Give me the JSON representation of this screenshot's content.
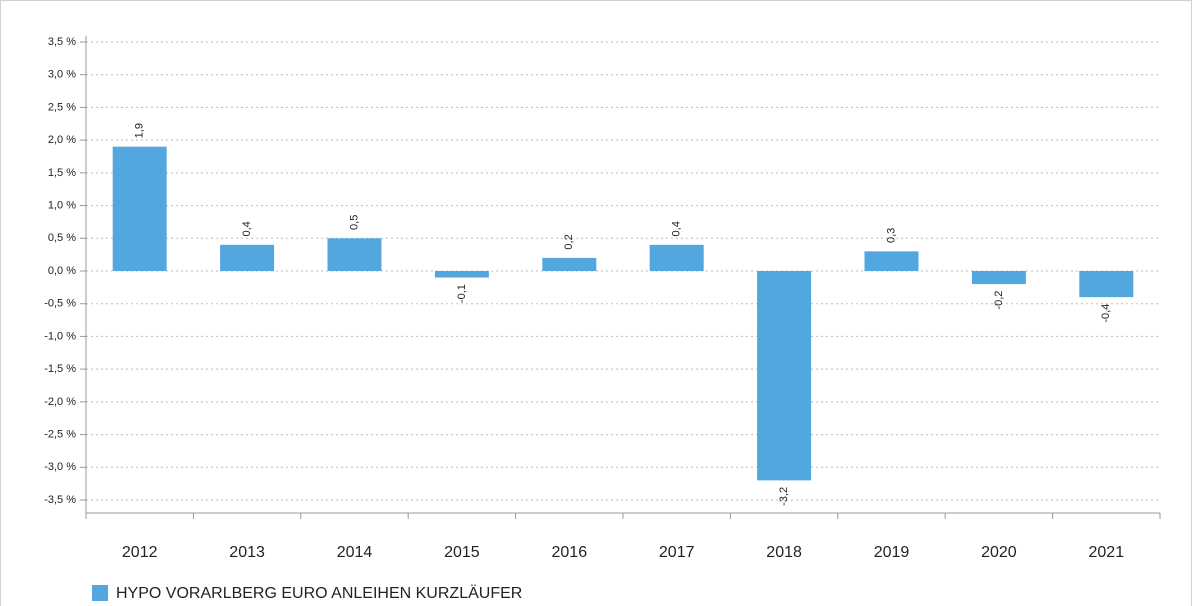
{
  "chart_data": {
    "type": "bar",
    "categories": [
      "2012",
      "2013",
      "2014",
      "2015",
      "2016",
      "2017",
      "2018",
      "2019",
      "2020",
      "2021"
    ],
    "series": [
      {
        "name": "HYPO VORARLBERG EURO ANLEIHEN KURZLÄUFER",
        "color": "#52a7de",
        "values": [
          1.9,
          0.4,
          0.5,
          -0.1,
          0.2,
          0.4,
          -3.2,
          0.3,
          -0.2,
          -0.4
        ],
        "value_labels": [
          "1,9",
          "0,4",
          "0,5",
          "-0,1",
          "0,2",
          "0,4",
          "-3,2",
          "0,3",
          "-0,2",
          "-0,4"
        ]
      }
    ],
    "ylim": [
      -3.5,
      3.5
    ],
    "yticks": [
      {
        "value": -3.5,
        "label": "-3,5 %"
      },
      {
        "value": -3.0,
        "label": "-3,0 %"
      },
      {
        "value": -2.5,
        "label": "-2,5 %"
      },
      {
        "value": -2.0,
        "label": "-2,0 %"
      },
      {
        "value": -1.5,
        "label": "-1,5 %"
      },
      {
        "value": -1.0,
        "label": "-1,0 %"
      },
      {
        "value": -0.5,
        "label": "-0,5 %"
      },
      {
        "value": 0.0,
        "label": "0,0 %"
      },
      {
        "value": 0.5,
        "label": "0,5 %"
      },
      {
        "value": 1.0,
        "label": "1,0 %"
      },
      {
        "value": 1.5,
        "label": "1,5 %"
      },
      {
        "value": 2.0,
        "label": "2,0 %"
      },
      {
        "value": 2.5,
        "label": "2,5 %"
      },
      {
        "value": 3.0,
        "label": "3,0 %"
      },
      {
        "value": 3.5,
        "label": "3,5 %"
      }
    ],
    "grid": true,
    "legend": "bottom-left"
  }
}
